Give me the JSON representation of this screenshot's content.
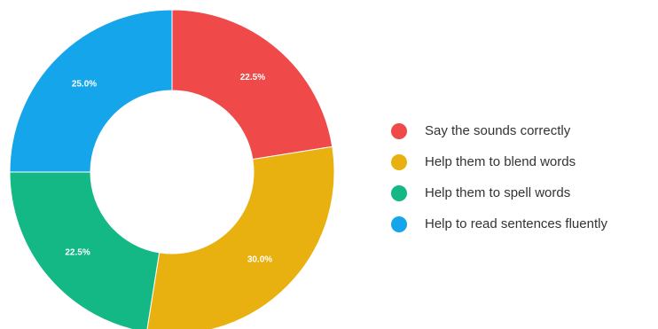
{
  "chart_data": {
    "type": "pie",
    "donut": true,
    "title": "",
    "legend_position": "right",
    "categories": [
      "Say the sounds correctly",
      "Help them to blend words",
      "Help them to spell words",
      "Help to read sentences fluently"
    ],
    "values": [
      22.5,
      30.0,
      22.5,
      25.0
    ],
    "labels": [
      "22.5%",
      "30.0%",
      "22.5%",
      "25.0%"
    ],
    "colors": [
      "#f04949",
      "#e9b10f",
      "#13b884",
      "#15a5ea"
    ]
  }
}
